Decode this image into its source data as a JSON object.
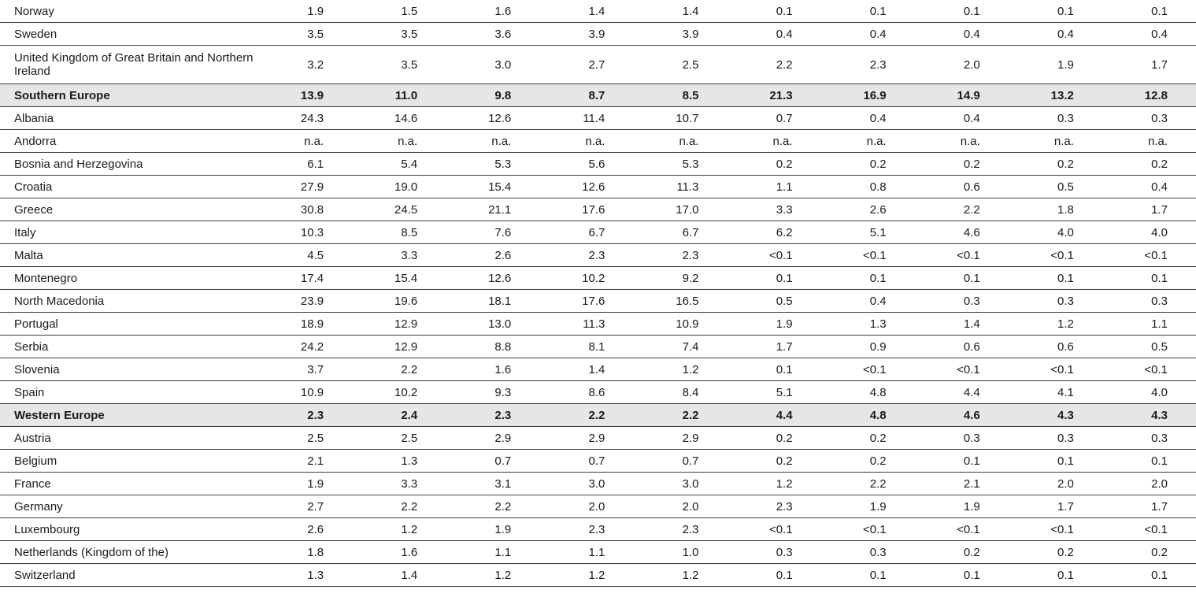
{
  "rows": [
    {
      "name": "Norway",
      "values": [
        "1.9",
        "1.5",
        "1.6",
        "1.4",
        "1.4",
        "0.1",
        "0.1",
        "0.1",
        "0.1",
        "0.1"
      ]
    },
    {
      "name": "Sweden",
      "values": [
        "3.5",
        "3.5",
        "3.6",
        "3.9",
        "3.9",
        "0.4",
        "0.4",
        "0.4",
        "0.4",
        "0.4"
      ]
    },
    {
      "name": "United Kingdom of Great Britain and Northern Ireland",
      "values": [
        "3.2",
        "3.5",
        "3.0",
        "2.7",
        "2.5",
        "2.2",
        "2.3",
        "2.0",
        "1.9",
        "1.7"
      ]
    },
    {
      "name": "Southern Europe",
      "region": true,
      "values": [
        "13.9",
        "11.0",
        "9.8",
        "8.7",
        "8.5",
        "21.3",
        "16.9",
        "14.9",
        "13.2",
        "12.8"
      ]
    },
    {
      "name": "Albania",
      "values": [
        "24.3",
        "14.6",
        "12.6",
        "11.4",
        "10.7",
        "0.7",
        "0.4",
        "0.4",
        "0.3",
        "0.3"
      ]
    },
    {
      "name": "Andorra",
      "values": [
        "n.a.",
        "n.a.",
        "n.a.",
        "n.a.",
        "n.a.",
        "n.a.",
        "n.a.",
        "n.a.",
        "n.a.",
        "n.a."
      ]
    },
    {
      "name": "Bosnia and Herzegovina",
      "values": [
        "6.1",
        "5.4",
        "5.3",
        "5.6",
        "5.3",
        "0.2",
        "0.2",
        "0.2",
        "0.2",
        "0.2"
      ]
    },
    {
      "name": "Croatia",
      "values": [
        "27.9",
        "19.0",
        "15.4",
        "12.6",
        "11.3",
        "1.1",
        "0.8",
        "0.6",
        "0.5",
        "0.4"
      ]
    },
    {
      "name": "Greece",
      "values": [
        "30.8",
        "24.5",
        "21.1",
        "17.6",
        "17.0",
        "3.3",
        "2.6",
        "2.2",
        "1.8",
        "1.7"
      ]
    },
    {
      "name": "Italy",
      "values": [
        "10.3",
        "8.5",
        "7.6",
        "6.7",
        "6.7",
        "6.2",
        "5.1",
        "4.6",
        "4.0",
        "4.0"
      ]
    },
    {
      "name": "Malta",
      "values": [
        "4.5",
        "3.3",
        "2.6",
        "2.3",
        "2.3",
        "<0.1",
        "<0.1",
        "<0.1",
        "<0.1",
        "<0.1"
      ]
    },
    {
      "name": "Montenegro",
      "values": [
        "17.4",
        "15.4",
        "12.6",
        "10.2",
        "9.2",
        "0.1",
        "0.1",
        "0.1",
        "0.1",
        "0.1"
      ]
    },
    {
      "name": "North Macedonia",
      "values": [
        "23.9",
        "19.6",
        "18.1",
        "17.6",
        "16.5",
        "0.5",
        "0.4",
        "0.3",
        "0.3",
        "0.3"
      ]
    },
    {
      "name": "Portugal",
      "values": [
        "18.9",
        "12.9",
        "13.0",
        "11.3",
        "10.9",
        "1.9",
        "1.3",
        "1.4",
        "1.2",
        "1.1"
      ]
    },
    {
      "name": "Serbia",
      "values": [
        "24.2",
        "12.9",
        "8.8",
        "8.1",
        "7.4",
        "1.7",
        "0.9",
        "0.6",
        "0.6",
        "0.5"
      ]
    },
    {
      "name": "Slovenia",
      "values": [
        "3.7",
        "2.2",
        "1.6",
        "1.4",
        "1.2",
        "0.1",
        "<0.1",
        "<0.1",
        "<0.1",
        "<0.1"
      ]
    },
    {
      "name": "Spain",
      "values": [
        "10.9",
        "10.2",
        "9.3",
        "8.6",
        "8.4",
        "5.1",
        "4.8",
        "4.4",
        "4.1",
        "4.0"
      ]
    },
    {
      "name": "Western Europe",
      "region": true,
      "values": [
        "2.3",
        "2.4",
        "2.3",
        "2.2",
        "2.2",
        "4.4",
        "4.8",
        "4.6",
        "4.3",
        "4.3"
      ]
    },
    {
      "name": "Austria",
      "values": [
        "2.5",
        "2.5",
        "2.9",
        "2.9",
        "2.9",
        "0.2",
        "0.2",
        "0.3",
        "0.3",
        "0.3"
      ]
    },
    {
      "name": "Belgium",
      "values": [
        "2.1",
        "1.3",
        "0.7",
        "0.7",
        "0.7",
        "0.2",
        "0.2",
        "0.1",
        "0.1",
        "0.1"
      ]
    },
    {
      "name": "France",
      "values": [
        "1.9",
        "3.3",
        "3.1",
        "3.0",
        "3.0",
        "1.2",
        "2.2",
        "2.1",
        "2.0",
        "2.0"
      ]
    },
    {
      "name": "Germany",
      "values": [
        "2.7",
        "2.2",
        "2.2",
        "2.0",
        "2.0",
        "2.3",
        "1.9",
        "1.9",
        "1.7",
        "1.7"
      ]
    },
    {
      "name": "Luxembourg",
      "values": [
        "2.6",
        "1.2",
        "1.9",
        "2.3",
        "2.3",
        "<0.1",
        "<0.1",
        "<0.1",
        "<0.1",
        "<0.1"
      ]
    },
    {
      "name": "Netherlands (Kingdom of the)",
      "values": [
        "1.8",
        "1.6",
        "1.1",
        "1.1",
        "1.0",
        "0.3",
        "0.3",
        "0.2",
        "0.2",
        "0.2"
      ]
    },
    {
      "name": "Switzerland",
      "values": [
        "1.3",
        "1.4",
        "1.2",
        "1.2",
        "1.2",
        "0.1",
        "0.1",
        "0.1",
        "0.1",
        "0.1"
      ]
    }
  ]
}
